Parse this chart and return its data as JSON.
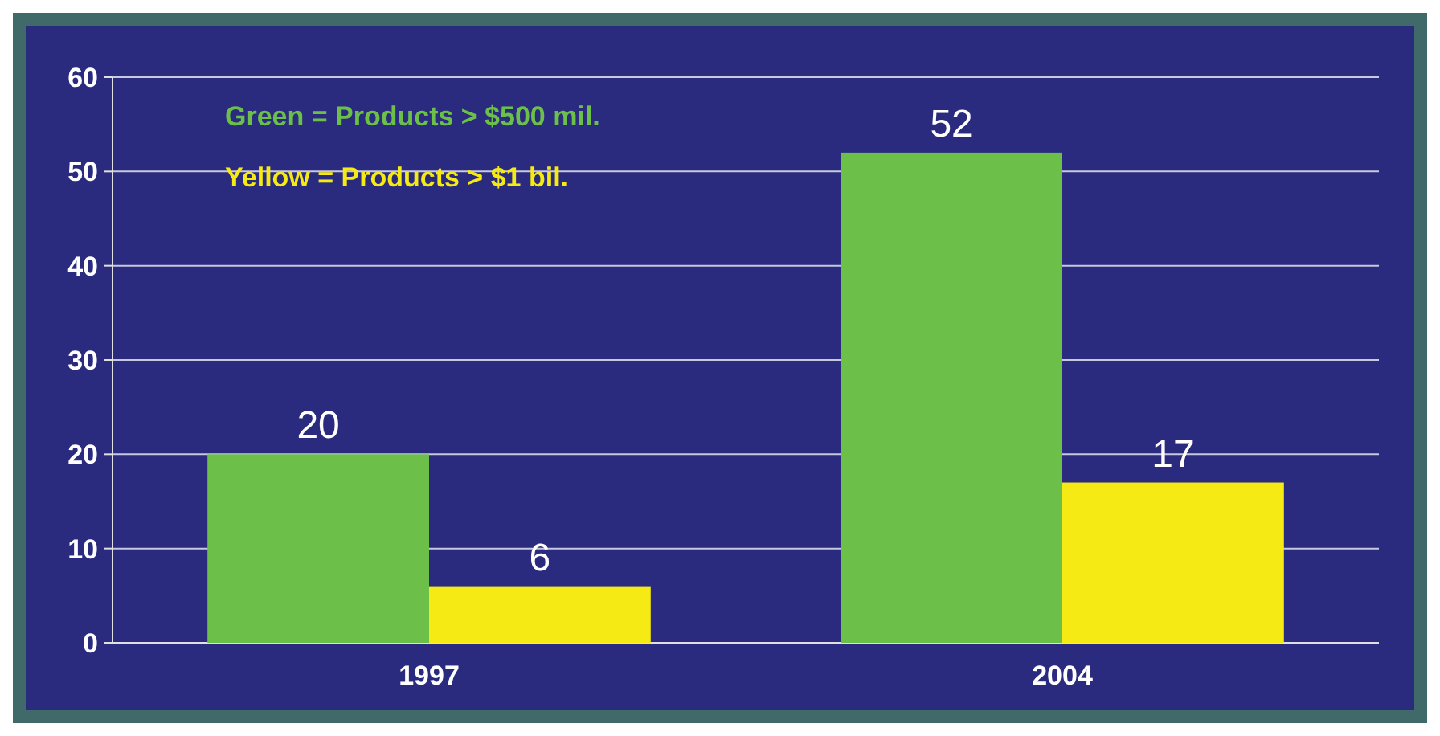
{
  "chart_data": {
    "type": "bar",
    "categories": [
      "1997",
      "2004"
    ],
    "series": [
      {
        "name": "Green = Products > $500 mil.",
        "color": "#6cc04a",
        "values": [
          20,
          52
        ]
      },
      {
        "name": "Yellow = Products > $1 bil.",
        "color": "#f5ea14",
        "values": [
          6,
          17
        ]
      }
    ],
    "ylim": [
      0,
      60
    ],
    "yticks": [
      0,
      10,
      20,
      30,
      40,
      50,
      60
    ],
    "grid": "y",
    "legend": "top left",
    "data_labels": true
  }
}
